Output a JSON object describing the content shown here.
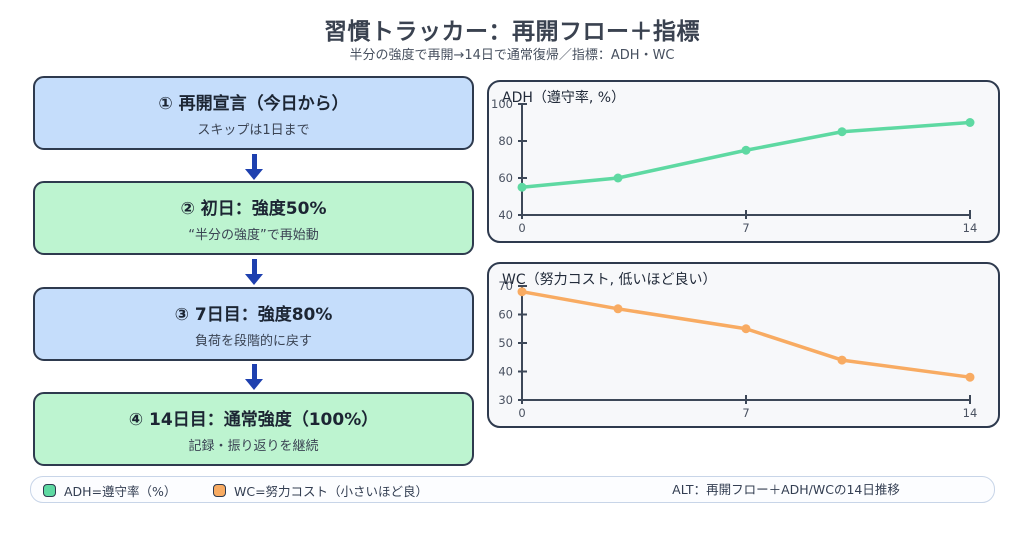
{
  "page": {
    "title": "習慣トラッカー：再開フロー＋指標",
    "subtitle": "半分の強度で再開→14日で通常復帰／指標：ADH・WC"
  },
  "colors": {
    "box_blue": "#c5ddfb",
    "box_green": "#bdf4d0",
    "border_dark": "#2e3a4e",
    "arrow_blue": "#1e40af",
    "axis": "#3d4858",
    "adh_line": "#5ed9a2",
    "wc_line": "#f8ab62"
  },
  "flow": {
    "steps": [
      {
        "heading": "① 再開宣言（今日から）",
        "subtext": "スキップは1日まで",
        "variant": "blue"
      },
      {
        "heading": "② 初日：強度50%",
        "subtext": "“半分の強度”で再始動",
        "variant": "green"
      },
      {
        "heading": "③ 7日目：強度80%",
        "subtext": "負荷を段階的に戻す",
        "variant": "blue"
      },
      {
        "heading": "④ 14日目：通常強度（100%）",
        "subtext": "記録・振り返りを継続",
        "variant": "green"
      }
    ]
  },
  "chart_data": [
    {
      "type": "line",
      "title": "ADH（遵守率, %）",
      "x": [
        0,
        3,
        7,
        10,
        14
      ],
      "values": [
        55,
        60,
        75,
        85,
        90
      ],
      "color": "#5ed9a2",
      "xlim": [
        0,
        14
      ],
      "ylim": [
        40,
        100
      ],
      "xticks": [
        0,
        7,
        14
      ],
      "yticks": [
        40,
        60,
        80,
        100
      ],
      "grid": false,
      "legend_position": "none"
    },
    {
      "type": "line",
      "title": "WC（努力コスト, 低いほど良い）",
      "x": [
        0,
        3,
        7,
        10,
        14
      ],
      "values": [
        68,
        62,
        55,
        44,
        38
      ],
      "color": "#f8ab62",
      "xlim": [
        0,
        14
      ],
      "ylim": [
        30,
        70
      ],
      "xticks": [
        0,
        7,
        14
      ],
      "yticks": [
        30,
        40,
        50,
        60,
        70
      ],
      "grid": false,
      "legend_position": "none"
    }
  ],
  "footer": {
    "legend": [
      {
        "label": "ADH=遵守率（%）",
        "color": "#5ed9a2"
      },
      {
        "label": "WC=努力コスト（小さいほど良）",
        "color": "#f8ab62"
      }
    ],
    "alt_text": "ALT：再開フロー＋ADH/WCの14日推移"
  }
}
